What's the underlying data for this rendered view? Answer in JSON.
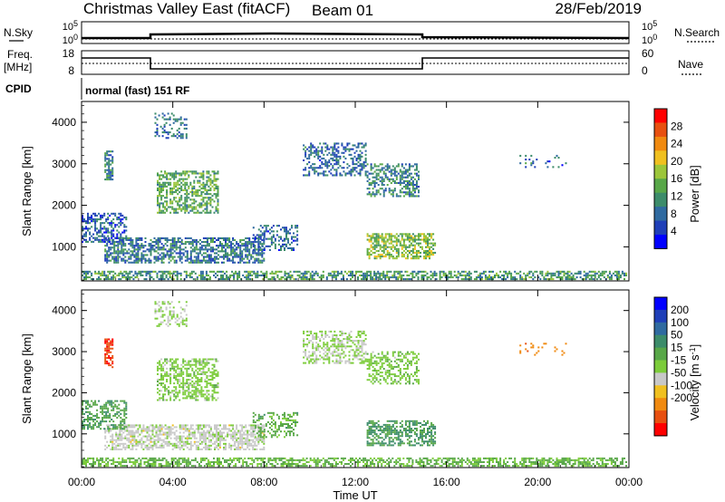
{
  "header": {
    "station": "Christmas Valley East (fitACF)",
    "beam": "Beam 01",
    "date": "28/Feb/2019"
  },
  "noise_panel": {
    "left_label": "N.Sky",
    "left_ticks": [
      "10^5",
      "10^0"
    ],
    "right_ticks": [
      "10^5",
      "10^0"
    ],
    "right_label": "N.Search"
  },
  "freq_panel": {
    "left_label_1": "Freq.",
    "left_label_2": "[MHz]",
    "left_ticks": [
      "18",
      "8"
    ],
    "right_ticks": [
      "60",
      "0"
    ],
    "right_label": "Nave"
  },
  "cpid": {
    "label": "CPID",
    "mode": "normal (fast) 151 RF"
  },
  "x_axis": {
    "label": "Time UT",
    "ticks": [
      "00:00",
      "04:00",
      "08:00",
      "12:00",
      "16:00",
      "20:00",
      "00:00"
    ]
  },
  "chart_data": [
    {
      "type": "heatmap",
      "title": "",
      "ylabel": "Slant Range [km]",
      "xlabel": "",
      "ylim": [
        180,
        4500
      ],
      "yticks": [
        "1000",
        "2000",
        "3000",
        "4000"
      ],
      "colorbar": {
        "label": "Power [dB]",
        "range": [
          0,
          32
        ],
        "ticks": [
          "4",
          "8",
          "12",
          "16",
          "20",
          "24",
          "28"
        ],
        "colors": [
          "#0000ff",
          "#1f3fb8",
          "#2f6aa0",
          "#3c8c6a",
          "#58a748",
          "#9cc63a",
          "#f0c020",
          "#f08a10",
          "#e85010",
          "#ff0000"
        ]
      },
      "regions": [
        {
          "t0": 0.0,
          "t1": 23.9,
          "r0": 200,
          "r1": 400,
          "value": 12,
          "density": 0.55
        },
        {
          "t0": 1.0,
          "t1": 8.0,
          "r0": 600,
          "r1": 1200,
          "value": 9,
          "density": 0.6
        },
        {
          "t0": 0.0,
          "t1": 2.0,
          "r0": 1100,
          "r1": 1800,
          "value": 7,
          "density": 0.5
        },
        {
          "t0": 1.0,
          "t1": 1.4,
          "r0": 2600,
          "r1": 3300,
          "value": 10,
          "density": 0.7
        },
        {
          "t0": 3.3,
          "t1": 6.0,
          "r0": 1800,
          "r1": 2800,
          "value": 14,
          "density": 0.55
        },
        {
          "t0": 3.2,
          "t1": 4.6,
          "r0": 3600,
          "r1": 4200,
          "value": 8,
          "density": 0.35
        },
        {
          "t0": 7.5,
          "t1": 9.5,
          "r0": 900,
          "r1": 1500,
          "value": 8,
          "density": 0.35
        },
        {
          "t0": 9.7,
          "t1": 12.5,
          "r0": 2700,
          "r1": 3500,
          "value": 8,
          "density": 0.45
        },
        {
          "t0": 12.5,
          "t1": 14.8,
          "r0": 2200,
          "r1": 3000,
          "value": 10,
          "density": 0.45
        },
        {
          "t0": 12.5,
          "t1": 15.5,
          "r0": 700,
          "r1": 1300,
          "value": 16,
          "density": 0.6
        },
        {
          "t0": 19.2,
          "t1": 21.2,
          "r0": 2900,
          "r1": 3200,
          "value": 8,
          "density": 0.15
        }
      ]
    },
    {
      "type": "heatmap",
      "title": "",
      "ylabel": "Slant Range [km]",
      "xlabel": "",
      "ylim": [
        180,
        4500
      ],
      "yticks": [
        "1000",
        "2000",
        "3000",
        "4000"
      ],
      "colorbar": {
        "label": "Velocity [m s^-1]",
        "range": [
          -250,
          250
        ],
        "ticks": [
          "200",
          "100",
          "50",
          "15",
          "-15",
          "-50",
          "-100",
          "-200"
        ],
        "colors": [
          "#0000ff",
          "#1f3fb8",
          "#2f6aa0",
          "#3c8c6a",
          "#58a748",
          "#7ccc3a",
          "#c8c8c8",
          "#f0c020",
          "#f08a10",
          "#e85010",
          "#ff0000"
        ]
      },
      "regions": [
        {
          "t0": 0.0,
          "t1": 23.9,
          "r0": 200,
          "r1": 400,
          "value": 30,
          "density": 0.55
        },
        {
          "t0": 1.0,
          "t1": 8.0,
          "r0": 600,
          "r1": 1200,
          "value": -40,
          "density": 0.6
        },
        {
          "t0": 0.0,
          "t1": 2.0,
          "r0": 1100,
          "r1": 1800,
          "value": 60,
          "density": 0.5
        },
        {
          "t0": 1.0,
          "t1": 1.4,
          "r0": 2600,
          "r1": 3300,
          "value": -200,
          "density": 0.7
        },
        {
          "t0": 3.3,
          "t1": 6.0,
          "r0": 1800,
          "r1": 2800,
          "value": 0,
          "density": 0.55
        },
        {
          "t0": 3.2,
          "t1": 4.6,
          "r0": 3600,
          "r1": 4200,
          "value": -20,
          "density": 0.35
        },
        {
          "t0": 7.5,
          "t1": 9.5,
          "r0": 900,
          "r1": 1500,
          "value": 40,
          "density": 0.35
        },
        {
          "t0": 9.7,
          "t1": 12.5,
          "r0": 2700,
          "r1": 3500,
          "value": -20,
          "density": 0.45
        },
        {
          "t0": 12.5,
          "t1": 14.8,
          "r0": 2200,
          "r1": 3000,
          "value": 5,
          "density": 0.45
        },
        {
          "t0": 12.5,
          "t1": 15.5,
          "r0": 700,
          "r1": 1300,
          "value": 70,
          "density": 0.6
        },
        {
          "t0": 19.2,
          "t1": 21.2,
          "r0": 2900,
          "r1": 3200,
          "value": -150,
          "density": 0.15
        }
      ]
    }
  ]
}
